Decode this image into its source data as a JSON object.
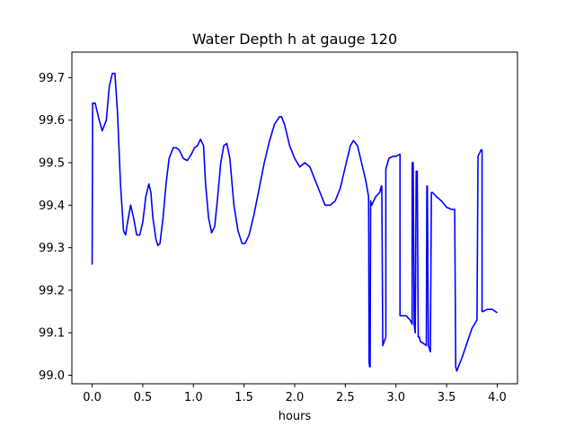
{
  "chart_data": {
    "type": "line",
    "title": "Water Depth h at gauge 120",
    "xlabel": "hours",
    "ylabel": "",
    "xlim": [
      -0.2,
      4.2
    ],
    "ylim": [
      98.98,
      99.76
    ],
    "xticks": [
      0.0,
      0.5,
      1.0,
      1.5,
      2.0,
      2.5,
      3.0,
      3.5,
      4.0
    ],
    "xtick_labels": [
      "0.0",
      "0.5",
      "1.0",
      "1.5",
      "2.0",
      "2.5",
      "3.0",
      "3.5",
      "4.0"
    ],
    "yticks": [
      99.0,
      99.1,
      99.2,
      99.3,
      99.4,
      99.5,
      99.6,
      99.7
    ],
    "ytick_labels": [
      "99.0",
      "99.1",
      "99.2",
      "99.3",
      "99.4",
      "99.5",
      "99.6",
      "99.7"
    ],
    "grid": false,
    "series": [
      {
        "name": "",
        "color": "#0000ff",
        "x": [
          0.0,
          0.005,
          0.03,
          0.07,
          0.1,
          0.14,
          0.17,
          0.2,
          0.225,
          0.25,
          0.28,
          0.31,
          0.33,
          0.35,
          0.38,
          0.41,
          0.44,
          0.47,
          0.5,
          0.53,
          0.56,
          0.58,
          0.6,
          0.63,
          0.65,
          0.67,
          0.7,
          0.73,
          0.76,
          0.8,
          0.83,
          0.86,
          0.9,
          0.94,
          0.98,
          1.01,
          1.04,
          1.07,
          1.1,
          1.12,
          1.15,
          1.18,
          1.21,
          1.24,
          1.27,
          1.3,
          1.33,
          1.36,
          1.4,
          1.44,
          1.48,
          1.51,
          1.55,
          1.6,
          1.65,
          1.7,
          1.75,
          1.8,
          1.85,
          1.87,
          1.9,
          1.95,
          2.0,
          2.05,
          2.1,
          2.15,
          2.2,
          2.25,
          2.3,
          2.35,
          2.4,
          2.45,
          2.5,
          2.55,
          2.58,
          2.62,
          2.66,
          2.7,
          2.73,
          2.735,
          2.74,
          2.745,
          2.75,
          2.76,
          2.8,
          2.84,
          2.855,
          2.86,
          2.87,
          2.9,
          2.9,
          2.93,
          2.97,
          3.0,
          3.04,
          3.04,
          3.06,
          3.1,
          3.14,
          3.16,
          3.16,
          3.17,
          3.18,
          3.19,
          3.2,
          3.21,
          3.22,
          3.23,
          3.24,
          3.27,
          3.3,
          3.305,
          3.31,
          3.32,
          3.34,
          3.35,
          3.36,
          3.4,
          3.45,
          3.5,
          3.55,
          3.58,
          3.58,
          3.59,
          3.6,
          3.65,
          3.7,
          3.75,
          3.8,
          3.81,
          3.82,
          3.84,
          3.85,
          3.85,
          3.86,
          3.9,
          3.95,
          4.0
        ],
        "y": [
          99.26,
          99.64,
          99.64,
          99.6,
          99.575,
          99.6,
          99.68,
          99.71,
          99.71,
          99.62,
          99.45,
          99.34,
          99.33,
          99.36,
          99.4,
          99.37,
          99.33,
          99.33,
          99.36,
          99.42,
          99.45,
          99.43,
          99.37,
          99.32,
          99.305,
          99.31,
          99.37,
          99.45,
          99.51,
          99.535,
          99.535,
          99.53,
          99.51,
          99.505,
          99.52,
          99.535,
          99.54,
          99.555,
          99.54,
          99.45,
          99.37,
          99.335,
          99.35,
          99.42,
          99.5,
          99.54,
          99.545,
          99.51,
          99.4,
          99.34,
          99.31,
          99.31,
          99.33,
          99.38,
          99.44,
          99.5,
          99.55,
          99.59,
          99.608,
          99.608,
          99.59,
          99.54,
          99.51,
          99.49,
          99.5,
          99.49,
          99.46,
          99.43,
          99.4,
          99.4,
          99.41,
          99.44,
          99.49,
          99.54,
          99.552,
          99.54,
          99.5,
          99.46,
          99.42,
          99.03,
          99.02,
          99.02,
          99.41,
          99.4,
          99.42,
          99.43,
          99.445,
          99.445,
          99.07,
          99.09,
          99.485,
          99.51,
          99.515,
          99.515,
          99.52,
          99.14,
          99.14,
          99.14,
          99.13,
          99.12,
          99.5,
          99.5,
          99.12,
          99.1,
          99.48,
          99.48,
          99.09,
          99.09,
          99.08,
          99.075,
          99.07,
          99.445,
          99.445,
          99.07,
          99.055,
          99.43,
          99.43,
          99.42,
          99.41,
          99.395,
          99.39,
          99.39,
          99.39,
          99.02,
          99.01,
          99.04,
          99.075,
          99.11,
          99.13,
          99.515,
          99.52,
          99.53,
          99.53,
          99.15,
          99.15,
          99.155,
          99.155,
          99.147
        ]
      }
    ]
  }
}
